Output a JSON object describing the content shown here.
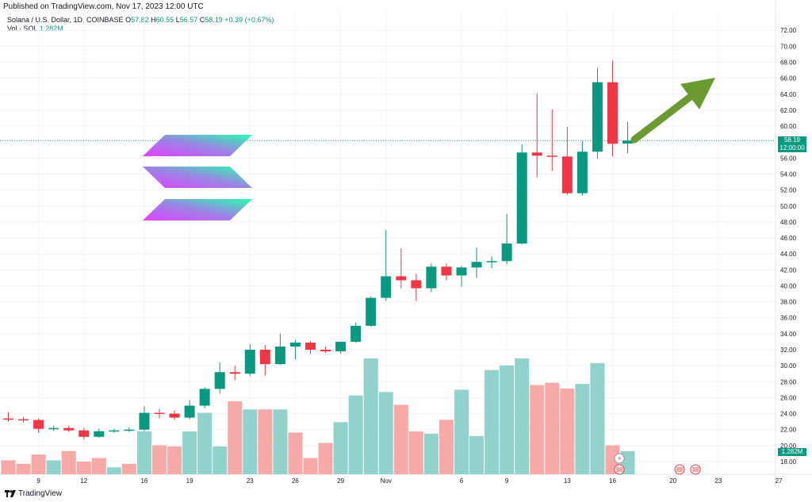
{
  "published_line": "Published on TradingView.com, Nov 17, 2023 12:00 UTC",
  "legend": {
    "symbol": "Solana / U.S. Dollar, 1D, COINBASE",
    "o_label": "O",
    "o": "57.82",
    "h_label": "H",
    "h": "60.55",
    "l_label": "L",
    "l": "56.57",
    "c_label": "C",
    "c": "58.19",
    "change": "+0.39 (+0.67%)",
    "vol_label": "Vol · SOL",
    "vol_value": "1.282M"
  },
  "last_price": {
    "price": "58.19",
    "time": "12:00:00"
  },
  "last_volume": "1.282M",
  "footer_brand": "TradingView",
  "colors": {
    "up": "#089981",
    "down": "#f23645",
    "vol_up": "#92d2cc",
    "vol_down": "#f7a9a7",
    "arrow": "#6a9a30"
  },
  "icons": [
    "solana-logo-icon",
    "green-arrow-icon",
    "tradingview-logo-icon",
    "flash-icon",
    "us-flag-icon"
  ],
  "chart_data": {
    "type": "candlestick",
    "price_axis": {
      "min": 18,
      "max": 72,
      "step": 2,
      "ticks": [
        "72.00",
        "70.00",
        "68.00",
        "66.00",
        "64.00",
        "62.00",
        "60.00",
        "58.00",
        "56.00",
        "54.00",
        "52.00",
        "50.00",
        "48.00",
        "46.00",
        "44.00",
        "42.00",
        "40.00",
        "38.00",
        "36.00",
        "34.00",
        "32.00",
        "30.00",
        "28.00",
        "26.00",
        "24.00",
        "22.00",
        "20.00",
        "18.00"
      ]
    },
    "x_ticks": [
      {
        "label": "9",
        "i": 2
      },
      {
        "label": "12",
        "i": 5
      },
      {
        "label": "16",
        "i": 9
      },
      {
        "label": "19",
        "i": 12
      },
      {
        "label": "23",
        "i": 16
      },
      {
        "label": "26",
        "i": 19
      },
      {
        "label": "29",
        "i": 22
      },
      {
        "label": "Nov",
        "i": 25
      },
      {
        "label": "6",
        "i": 30
      },
      {
        "label": "9",
        "i": 33
      },
      {
        "label": "13",
        "i": 37
      },
      {
        "label": "16",
        "i": 40
      },
      {
        "label": "20",
        "i": 44
      },
      {
        "label": "23",
        "i": 47
      },
      {
        "label": "27",
        "i": 51
      }
    ],
    "candles": [
      {
        "o": 23.4,
        "h": 24.2,
        "l": 23.0,
        "c": 23.3
      },
      {
        "o": 23.3,
        "h": 23.6,
        "l": 22.9,
        "c": 23.2
      },
      {
        "o": 23.2,
        "h": 23.4,
        "l": 21.6,
        "c": 22.1
      },
      {
        "o": 22.1,
        "h": 22.5,
        "l": 21.8,
        "c": 22.2
      },
      {
        "o": 22.2,
        "h": 22.5,
        "l": 21.7,
        "c": 21.9
      },
      {
        "o": 21.9,
        "h": 22.2,
        "l": 20.8,
        "c": 21.1
      },
      {
        "o": 21.1,
        "h": 22.1,
        "l": 21.0,
        "c": 21.8
      },
      {
        "o": 21.8,
        "h": 22.1,
        "l": 21.6,
        "c": 21.9
      },
      {
        "o": 21.9,
        "h": 22.3,
        "l": 21.7,
        "c": 22.0
      },
      {
        "o": 22.0,
        "h": 24.9,
        "l": 21.8,
        "c": 24.1
      },
      {
        "o": 24.1,
        "h": 24.6,
        "l": 23.4,
        "c": 24.0
      },
      {
        "o": 24.0,
        "h": 24.4,
        "l": 23.2,
        "c": 23.5
      },
      {
        "o": 23.5,
        "h": 25.7,
        "l": 23.3,
        "c": 25.0
      },
      {
        "o": 25.0,
        "h": 27.3,
        "l": 24.7,
        "c": 27.1
      },
      {
        "o": 27.1,
        "h": 30.4,
        "l": 26.5,
        "c": 29.2
      },
      {
        "o": 29.2,
        "h": 30.0,
        "l": 28.2,
        "c": 29.0
      },
      {
        "o": 29.0,
        "h": 32.7,
        "l": 28.7,
        "c": 32.0
      },
      {
        "o": 32.0,
        "h": 32.6,
        "l": 28.8,
        "c": 30.2
      },
      {
        "o": 30.2,
        "h": 34.0,
        "l": 30.1,
        "c": 32.4
      },
      {
        "o": 32.4,
        "h": 33.2,
        "l": 30.8,
        "c": 32.9
      },
      {
        "o": 32.9,
        "h": 33.1,
        "l": 31.5,
        "c": 32.0
      },
      {
        "o": 32.0,
        "h": 32.4,
        "l": 31.6,
        "c": 31.8
      },
      {
        "o": 31.8,
        "h": 33.0,
        "l": 31.5,
        "c": 33.0
      },
      {
        "o": 33.0,
        "h": 35.4,
        "l": 32.9,
        "c": 35.0
      },
      {
        "o": 35.0,
        "h": 38.7,
        "l": 34.9,
        "c": 38.5
      },
      {
        "o": 38.5,
        "h": 47.0,
        "l": 38.1,
        "c": 41.2
      },
      {
        "o": 41.2,
        "h": 44.7,
        "l": 39.7,
        "c": 40.7
      },
      {
        "o": 40.7,
        "h": 41.5,
        "l": 38.1,
        "c": 39.7
      },
      {
        "o": 39.7,
        "h": 42.8,
        "l": 39.2,
        "c": 42.4
      },
      {
        "o": 42.4,
        "h": 42.8,
        "l": 40.7,
        "c": 41.3
      },
      {
        "o": 41.3,
        "h": 42.5,
        "l": 39.9,
        "c": 42.3
      },
      {
        "o": 42.3,
        "h": 44.8,
        "l": 41.0,
        "c": 43.0
      },
      {
        "o": 43.0,
        "h": 43.7,
        "l": 42.2,
        "c": 43.1
      },
      {
        "o": 43.1,
        "h": 49.0,
        "l": 42.7,
        "c": 45.3
      },
      {
        "o": 45.3,
        "h": 57.7,
        "l": 45.2,
        "c": 56.7
      },
      {
        "o": 56.7,
        "h": 64.1,
        "l": 53.6,
        "c": 56.3
      },
      {
        "o": 56.3,
        "h": 62.1,
        "l": 54.4,
        "c": 56.2
      },
      {
        "o": 56.2,
        "h": 59.9,
        "l": 51.4,
        "c": 51.6
      },
      {
        "o": 51.6,
        "h": 58.1,
        "l": 51.3,
        "c": 56.8
      },
      {
        "o": 56.8,
        "h": 67.3,
        "l": 55.9,
        "c": 65.5
      },
      {
        "o": 65.5,
        "h": 68.2,
        "l": 56.2,
        "c": 57.8
      },
      {
        "o": 57.82,
        "h": 60.55,
        "l": 56.57,
        "c": 58.19
      }
    ],
    "volume_ratios": [
      0.12,
      0.09,
      0.17,
      0.12,
      0.2,
      0.11,
      0.14,
      0.06,
      0.09,
      0.37,
      0.25,
      0.24,
      0.37,
      0.53,
      0.24,
      0.63,
      0.56,
      0.56,
      0.56,
      0.36,
      0.14,
      0.27,
      0.45,
      0.68,
      1.0,
      0.71,
      0.6,
      0.37,
      0.35,
      0.47,
      0.73,
      0.33,
      0.9,
      0.94,
      1.0,
      0.77,
      0.79,
      0.74,
      0.78,
      0.96,
      0.25,
      0.2
    ],
    "volume_direction": [
      "down",
      "down",
      "down",
      "up",
      "down",
      "down",
      "down",
      "up",
      "down",
      "up",
      "down",
      "down",
      "up",
      "up",
      "up",
      "down",
      "up",
      "down",
      "up",
      "down",
      "down",
      "down",
      "up",
      "up",
      "up",
      "up",
      "down",
      "down",
      "up",
      "down",
      "up",
      "up",
      "up",
      "up",
      "up",
      "down",
      "down",
      "down",
      "up",
      "up",
      "down",
      "up"
    ],
    "annotations": {
      "solana_logo": true,
      "trend_arrow": "up-right"
    },
    "grid": true,
    "last_price_line": 58.19
  }
}
